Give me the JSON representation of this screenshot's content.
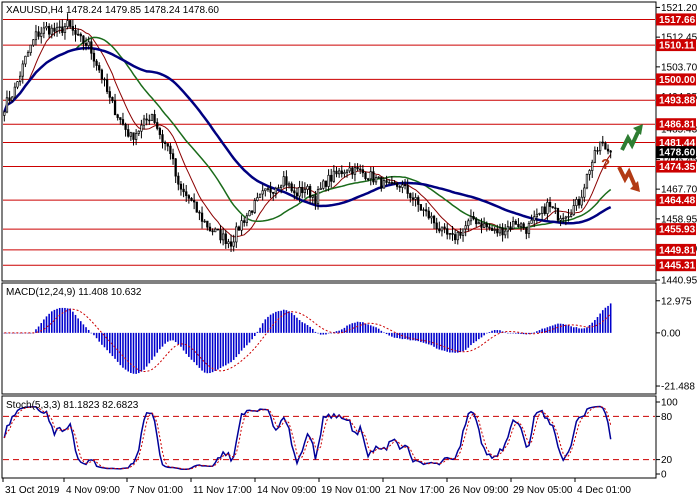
{
  "chart_data": {
    "type": "candlestick",
    "symbol_line": "XAUUSD,H4  1478.24 1479.85 1478.24 1478.60",
    "price_axis": {
      "min": 1440.95,
      "max": 1522.5,
      "ticks": [
        "1521.20",
        "1512.45",
        "1503.70",
        "1494.95",
        "1485.43",
        "1476.45",
        "1467.70",
        "1458.95",
        "1450.20",
        "1440.95"
      ]
    },
    "levels": [
      {
        "value": 1517.66,
        "label": "1517.66"
      },
      {
        "value": 1510.11,
        "label": "1510.11"
      },
      {
        "value": 1500.0,
        "label": "1500.00"
      },
      {
        "value": 1493.88,
        "label": "1493.88"
      },
      {
        "value": 1486.81,
        "label": "1486.81"
      },
      {
        "value": 1481.44,
        "label": "1481.44"
      },
      {
        "value": 1474.35,
        "label": "1474.35"
      },
      {
        "value": 1464.48,
        "label": "1464.48"
      },
      {
        "value": 1455.93,
        "label": "1455.93"
      },
      {
        "value": 1449.81,
        "label": "1449.81"
      },
      {
        "value": 1445.31,
        "label": "1445.31"
      }
    ],
    "current_price": {
      "value": 1478.6,
      "label": "1478.60"
    },
    "time_labels": [
      "31 Oct 2019",
      "4 Nov 09:00",
      "7 Nov 01:00",
      "11 Nov 17:00",
      "14 Nov 09:00",
      "19 Nov 01:00",
      "21 Nov 17:00",
      "26 Nov 09:00",
      "29 Nov 05:00",
      "4 Dec 01:00"
    ],
    "price_anchors": [
      [
        0,
        1492
      ],
      [
        4,
        1497
      ],
      [
        8,
        1506
      ],
      [
        12,
        1513
      ],
      [
        16,
        1515
      ],
      [
        20,
        1514
      ],
      [
        24,
        1516
      ],
      [
        28,
        1512
      ],
      [
        32,
        1510
      ],
      [
        36,
        1503
      ],
      [
        40,
        1494
      ],
      [
        44,
        1488
      ],
      [
        48,
        1483
      ],
      [
        52,
        1486
      ],
      [
        56,
        1490
      ],
      [
        60,
        1482
      ],
      [
        63,
        1479
      ],
      [
        66,
        1468
      ],
      [
        70,
        1465
      ],
      [
        74,
        1460
      ],
      [
        78,
        1456
      ],
      [
        82,
        1454
      ],
      [
        86,
        1452
      ],
      [
        90,
        1458
      ],
      [
        94,
        1462
      ],
      [
        98,
        1466
      ],
      [
        102,
        1468
      ],
      [
        106,
        1471
      ],
      [
        110,
        1466
      ],
      [
        114,
        1468
      ],
      [
        118,
        1465
      ],
      [
        122,
        1470
      ],
      [
        126,
        1472
      ],
      [
        130,
        1474
      ],
      [
        134,
        1473
      ],
      [
        138,
        1472
      ],
      [
        142,
        1470
      ],
      [
        146,
        1468
      ],
      [
        150,
        1469
      ],
      [
        154,
        1466
      ],
      [
        158,
        1462
      ],
      [
        162,
        1459
      ],
      [
        166,
        1455
      ],
      [
        170,
        1453
      ],
      [
        174,
        1456
      ],
      [
        178,
        1459
      ],
      [
        182,
        1457
      ],
      [
        186,
        1455
      ],
      [
        190,
        1456
      ],
      [
        194,
        1458
      ],
      [
        198,
        1456
      ],
      [
        202,
        1459
      ],
      [
        206,
        1463
      ],
      [
        210,
        1460
      ],
      [
        214,
        1461
      ],
      [
        218,
        1464
      ],
      [
        222,
        1474
      ],
      [
        226,
        1481
      ],
      [
        230,
        1478.6
      ]
    ],
    "indicators": {
      "macd": {
        "label": "MACD(12,24,9) 11.408 10.632",
        "ticks": [
          "12.975",
          "0.00",
          "-21.488"
        ],
        "min": -23.5,
        "max": 14.5
      },
      "stoch": {
        "label": "Stoch(5,3,3) 81.1823 82.6823",
        "ticks": [
          "100",
          "80",
          "20",
          "0"
        ],
        "min": 0,
        "max": 100,
        "levels": [
          80,
          20
        ]
      }
    },
    "forecast": {
      "up_arrow": "green",
      "down_arrow": "red",
      "question_mark": "?"
    }
  },
  "colors": {
    "candle": "#000000",
    "level_line": "#cc0000",
    "label_bg": "#cc0000",
    "ma_fast": "#8b0000",
    "ma_mid": "#1a6b1a",
    "ma_slow": "#000080",
    "macd_bar": "#0000cc",
    "signal": "#cc0000",
    "stoch_main": "#000099",
    "stoch_signal": "#cc0000",
    "arrow_up": "#2e7d32",
    "arrow_down": "#b23a14"
  }
}
